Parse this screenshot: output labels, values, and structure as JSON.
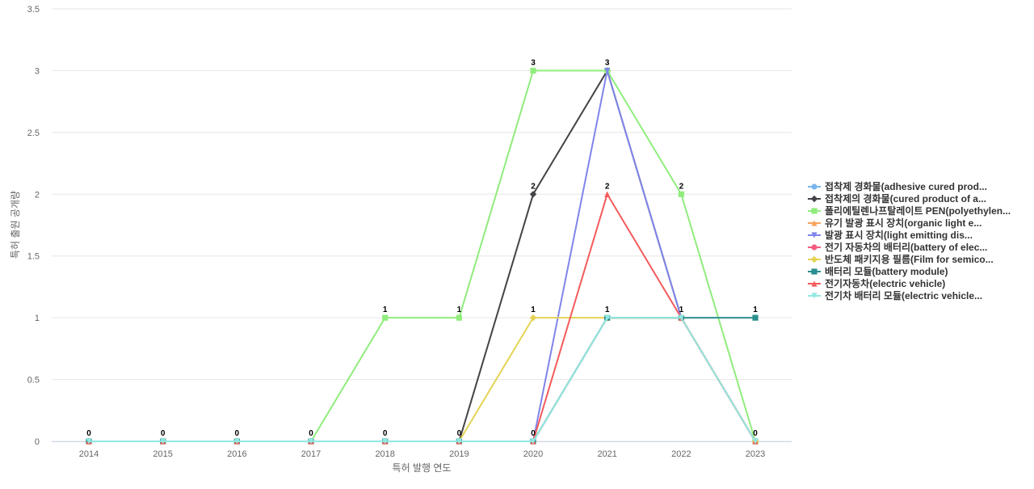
{
  "chart_data": {
    "type": "line",
    "title": "",
    "xlabel": "특허 발행 연도",
    "ylabel": "특허 출원 공개량",
    "categories": [
      "2014",
      "2015",
      "2016",
      "2017",
      "2018",
      "2019",
      "2020",
      "2021",
      "2022",
      "2023"
    ],
    "ylim": [
      0,
      3.5
    ],
    "y_ticks": [
      "0",
      "0.5",
      "1",
      "1.5",
      "2",
      "2.5",
      "3",
      "3.5"
    ],
    "grid": true,
    "legend_position": "right",
    "data_labels_visible": true,
    "series": [
      {
        "name": "접착제 경화물(adhesive cured prod...",
        "color": "#7cb5ec",
        "marker": "circle",
        "values": [
          0,
          0,
          0,
          0,
          0,
          0,
          0,
          1,
          1,
          0
        ]
      },
      {
        "name": "접착제의 경화물(cured product of a...",
        "color": "#434348",
        "marker": "diamond",
        "values": [
          0,
          0,
          0,
          0,
          0,
          0,
          2,
          3,
          1,
          0
        ]
      },
      {
        "name": "폴리에틸렌나프탈레이트 PEN(polyethylen...",
        "color": "#90ed7d",
        "marker": "square",
        "values": [
          0,
          0,
          0,
          0,
          1,
          1,
          3,
          3,
          2,
          0
        ]
      },
      {
        "name": "유기 발광 표시 장치(organic light e...",
        "color": "#f7a35c",
        "marker": "triangle",
        "values": [
          0,
          0,
          0,
          0,
          0,
          0,
          0,
          1,
          1,
          0
        ]
      },
      {
        "name": "발광 표시 장치(light emitting dis...",
        "color": "#8085e9",
        "marker": "triangle-down",
        "values": [
          0,
          0,
          0,
          0,
          0,
          0,
          0,
          3,
          1,
          0
        ]
      },
      {
        "name": "전기 자동차의 배터리(battery of elec...",
        "color": "#f15c80",
        "marker": "circle",
        "values": [
          0,
          0,
          0,
          0,
          0,
          0,
          0,
          1,
          1,
          0
        ]
      },
      {
        "name": "반도체 패키지용 필름(Film for semico...",
        "color": "#e4d354",
        "marker": "diamond",
        "values": [
          0,
          0,
          0,
          0,
          0,
          0,
          1,
          1,
          1,
          0
        ]
      },
      {
        "name": "배터리 모듈(battery module)",
        "color": "#2b908f",
        "marker": "square",
        "values": [
          0,
          0,
          0,
          0,
          0,
          0,
          0,
          1,
          1,
          1
        ]
      },
      {
        "name": "전기자동차(electric vehicle)",
        "color": "#f45b5b",
        "marker": "triangle",
        "values": [
          0,
          0,
          0,
          0,
          0,
          0,
          0,
          2,
          1,
          0
        ]
      },
      {
        "name": "전기차 배터리 모듈(electric vehicle...",
        "color": "#91e8e1",
        "marker": "triangle-down",
        "values": [
          0,
          0,
          0,
          0,
          0,
          0,
          0,
          1,
          1,
          0
        ]
      }
    ],
    "data_labels": [
      {
        "x": "2014",
        "value": "0"
      },
      {
        "x": "2015",
        "value": "0"
      },
      {
        "x": "2016",
        "value": "0"
      },
      {
        "x": "2017",
        "value": "0"
      },
      {
        "x": "2018",
        "value": "0"
      },
      {
        "x": "2018",
        "value": "1"
      },
      {
        "x": "2019",
        "value": "0"
      },
      {
        "x": "2019",
        "value": "1"
      },
      {
        "x": "2020",
        "value": "0"
      },
      {
        "x": "2020",
        "value": "1"
      },
      {
        "x": "2020",
        "value": "2"
      },
      {
        "x": "2020",
        "value": "3"
      },
      {
        "x": "2021",
        "value": "1"
      },
      {
        "x": "2021",
        "value": "2"
      },
      {
        "x": "2021",
        "value": "3"
      },
      {
        "x": "2022",
        "value": "1"
      },
      {
        "x": "2022",
        "value": "2"
      },
      {
        "x": "2023",
        "value": "0"
      },
      {
        "x": "2023",
        "value": "1"
      }
    ]
  }
}
